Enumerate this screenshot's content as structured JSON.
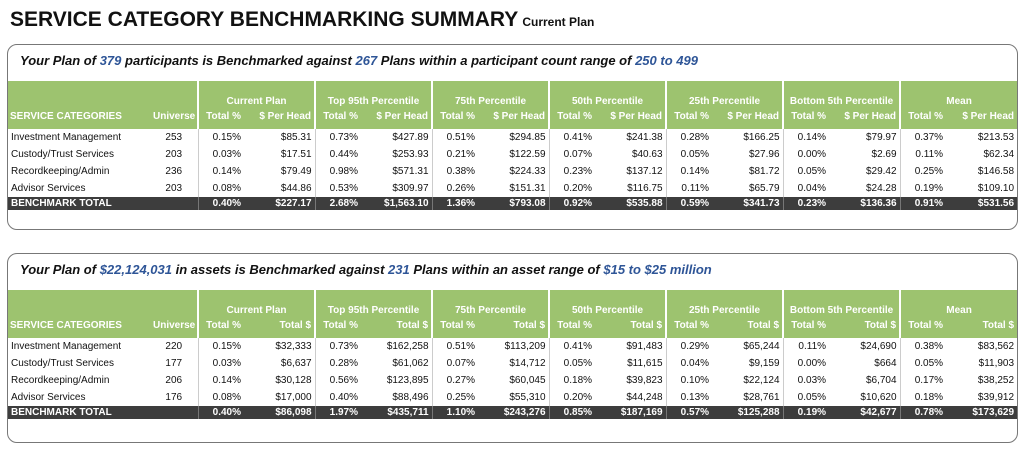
{
  "title": "SERVICE CATEGORY BENCHMARKING SUMMARY",
  "subtitle": "Current Plan",
  "panels": [
    {
      "heading": [
        "Your Plan of ",
        "379",
        " participants is Benchmarked against ",
        "267",
        " Plans within a participant count range of ",
        "250 to 499"
      ],
      "groups": [
        "Current Plan",
        "Top 95th Percentile",
        "75th Percentile",
        "50th Percentile",
        "25th Percentile",
        "Bottom 5th Percentile",
        "Mean"
      ],
      "columns": [
        "SERVICE CATEGORIES",
        "Universe",
        "Total %",
        "$ Per Head",
        "Total %",
        "$ Per Head",
        "Total %",
        "$ Per Head",
        "Total %",
        "$ Per Head",
        "Total %",
        "$ Per Head",
        "Total %",
        "$ Per Head",
        "Total %",
        "$ Per Head"
      ],
      "rows": [
        [
          "Investment Management",
          "253",
          "0.15%",
          "$85.31",
          "0.73%",
          "$427.89",
          "0.51%",
          "$294.85",
          "0.41%",
          "$241.38",
          "0.28%",
          "$166.25",
          "0.14%",
          "$79.97",
          "0.37%",
          "$213.53"
        ],
        [
          "Custody/Trust Services",
          "203",
          "0.03%",
          "$17.51",
          "0.44%",
          "$253.93",
          "0.21%",
          "$122.59",
          "0.07%",
          "$40.63",
          "0.05%",
          "$27.96",
          "0.00%",
          "$2.69",
          "0.11%",
          "$62.34"
        ],
        [
          "Recordkeeping/Admin",
          "236",
          "0.14%",
          "$79.49",
          "0.98%",
          "$571.31",
          "0.38%",
          "$224.33",
          "0.23%",
          "$137.12",
          "0.14%",
          "$81.72",
          "0.05%",
          "$29.42",
          "0.25%",
          "$146.58"
        ],
        [
          "Advisor Services",
          "203",
          "0.08%",
          "$44.86",
          "0.53%",
          "$309.97",
          "0.26%",
          "$151.31",
          "0.20%",
          "$116.75",
          "0.11%",
          "$65.79",
          "0.04%",
          "$24.28",
          "0.19%",
          "$109.10"
        ]
      ],
      "total": {
        "label": "BENCHMARK TOTAL",
        "values": [
          "0.40%",
          "$227.17",
          "2.68%",
          "$1,563.10",
          "1.36%",
          "$793.08",
          "0.92%",
          "$535.88",
          "0.59%",
          "$341.73",
          "0.23%",
          "$136.36",
          "0.91%",
          "$531.56"
        ]
      }
    },
    {
      "heading": [
        "Your Plan of ",
        "$22,124,031",
        " in assets is Benchmarked against ",
        "231",
        " Plans within an asset range of ",
        "$15 to $25 million"
      ],
      "groups": [
        "Current Plan",
        "Top 95th Percentile",
        "75th Percentile",
        "50th Percentile",
        "25th Percentile",
        "Bottom 5th Percentile",
        "Mean"
      ],
      "columns": [
        "SERVICE CATEGORIES",
        "Universe",
        "Total %",
        "Total $",
        "Total %",
        "Total $",
        "Total %",
        "Total $",
        "Total %",
        "Total $",
        "Total %",
        "Total $",
        "Total %",
        "Total $",
        "Total %",
        "Total $"
      ],
      "rows": [
        [
          "Investment Management",
          "220",
          "0.15%",
          "$32,333",
          "0.73%",
          "$162,258",
          "0.51%",
          "$113,209",
          "0.41%",
          "$91,483",
          "0.29%",
          "$65,244",
          "0.11%",
          "$24,690",
          "0.38%",
          "$83,562"
        ],
        [
          "Custody/Trust Services",
          "177",
          "0.03%",
          "$6,637",
          "0.28%",
          "$61,062",
          "0.07%",
          "$14,712",
          "0.05%",
          "$11,615",
          "0.04%",
          "$9,159",
          "0.00%",
          "$664",
          "0.05%",
          "$11,903"
        ],
        [
          "Recordkeeping/Admin",
          "206",
          "0.14%",
          "$30,128",
          "0.56%",
          "$123,895",
          "0.27%",
          "$60,045",
          "0.18%",
          "$39,823",
          "0.10%",
          "$22,124",
          "0.03%",
          "$6,704",
          "0.17%",
          "$38,252"
        ],
        [
          "Advisor Services",
          "176",
          "0.08%",
          "$17,000",
          "0.40%",
          "$88,496",
          "0.25%",
          "$55,310",
          "0.20%",
          "$44,248",
          "0.13%",
          "$28,761",
          "0.05%",
          "$10,620",
          "0.18%",
          "$39,912"
        ]
      ],
      "total": {
        "label": "BENCHMARK TOTAL",
        "values": [
          "0.40%",
          "$86,098",
          "1.97%",
          "$435,711",
          "1.10%",
          "$243,276",
          "0.85%",
          "$187,169",
          "0.57%",
          "$125,288",
          "0.19%",
          "$42,677",
          "0.78%",
          "$173,629"
        ]
      }
    }
  ]
}
